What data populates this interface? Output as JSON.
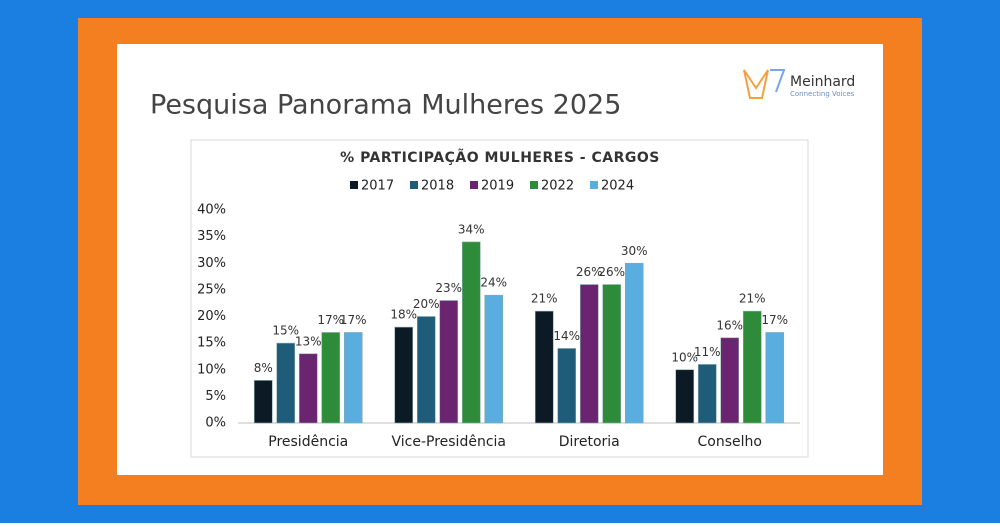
{
  "slide": {
    "title": "Pesquisa Panorama Mulheres 2025",
    "logo": {
      "name": "Meinhard",
      "tagline": "Connecting Voices"
    }
  },
  "chart_data": {
    "type": "bar",
    "title": "% PARTICIPAÇÃO MULHERES - CARGOS",
    "categories": [
      "Presidência",
      "Vice-Presidência",
      "Diretoria",
      "Conselho"
    ],
    "series": [
      {
        "name": "2017",
        "color": "#0b1a24",
        "values": [
          8,
          18,
          21,
          10
        ],
        "value_labels": [
          "8%",
          "18%",
          "21%",
          "10%"
        ]
      },
      {
        "name": "2018",
        "color": "#1f5c7a",
        "values": [
          15,
          20,
          14,
          11
        ],
        "value_labels": [
          "15%",
          "20%",
          "14%",
          "11%"
        ]
      },
      {
        "name": "2019",
        "color": "#6b2470",
        "values": [
          13,
          23,
          26,
          16
        ],
        "value_labels": [
          "13%",
          "23%",
          "26%",
          "16%"
        ]
      },
      {
        "name": "2022",
        "color": "#2e8b3a",
        "values": [
          17,
          34,
          26,
          21
        ],
        "value_labels": [
          "17%",
          "34%",
          "26%",
          "21%"
        ]
      },
      {
        "name": "2024",
        "color": "#5aaedf",
        "values": [
          17,
          24,
          30,
          17
        ],
        "value_labels": [
          "17%",
          "24%",
          "30%",
          "17%"
        ]
      }
    ],
    "ylim": [
      0,
      40
    ],
    "yticks": [
      {
        "value": 0,
        "label": "0%"
      },
      {
        "value": 5,
        "label": "5%"
      },
      {
        "value": 10,
        "label": "10%"
      },
      {
        "value": 15,
        "label": "15%"
      },
      {
        "value": 20,
        "label": "20%"
      },
      {
        "value": 25,
        "label": "25%"
      },
      {
        "value": 30,
        "label": "30%"
      },
      {
        "value": 35,
        "label": "35%"
      },
      {
        "value": 40,
        "label": "40%"
      }
    ],
    "grid": false,
    "legend": "top"
  }
}
